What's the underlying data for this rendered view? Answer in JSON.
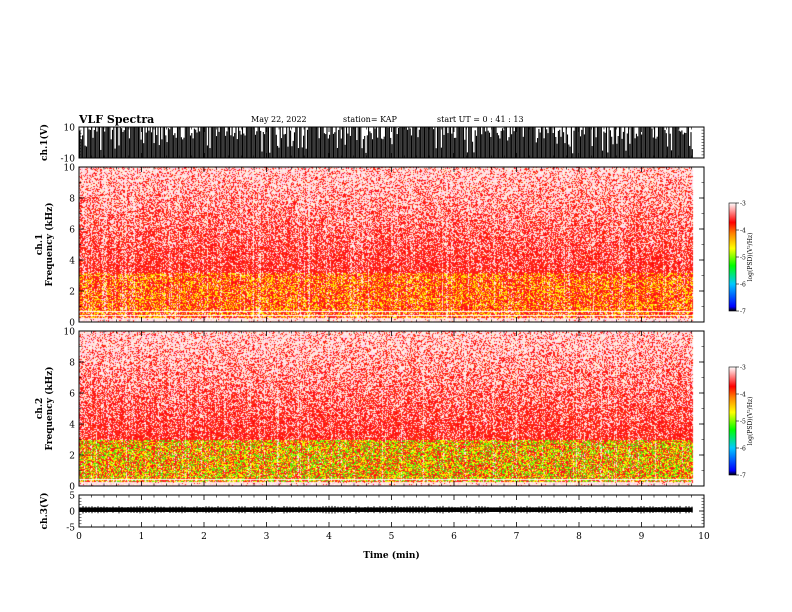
{
  "header": {
    "title": "VLF Spectra",
    "date": "May 22, 2022",
    "station": "station= KAP",
    "start": "start UT = 0 : 41 : 13"
  },
  "chart_data": [
    {
      "type": "line",
      "panel": "ch1-waveform",
      "ylabel": "ch.1(V)",
      "ylim": [
        -10,
        10
      ],
      "ytick_labels": [
        "-10",
        "10"
      ],
      "xlim": [
        0,
        10
      ],
      "data_span_min": [
        0,
        9.82
      ],
      "description_values": {
        "amplitude_range_V": [
          -10,
          10
        ],
        "baseline_V": -10
      }
    },
    {
      "type": "heatmap",
      "panel": "ch1-spectrogram",
      "ylabel": "ch.1\nFrequency (kHz)",
      "ylim": [
        0,
        10
      ],
      "ytick_labels": [
        "0",
        "2",
        "4",
        "6",
        "8",
        "10"
      ],
      "xlim": [
        0,
        10
      ],
      "data_span_min": [
        0,
        9.82
      ],
      "intense_band_kHz": [
        0.8,
        3.2
      ],
      "low_freq_cutoff_kHz": 0.3,
      "colorbar": {
        "label": "log(PSD)(V²/Hz)",
        "range": [
          -7,
          -3
        ],
        "tick_labels": [
          "-7",
          "-6",
          "-5",
          "-4",
          "-3"
        ],
        "colors": [
          "#000000",
          "#0000ff",
          "#00ffff",
          "#00ff00",
          "#ffff00",
          "#ff8000",
          "#ff0000",
          "#ffffff"
        ]
      }
    },
    {
      "type": "heatmap",
      "panel": "ch2-spectrogram",
      "ylabel": "ch.2\nFrequency (kHz)",
      "ylim": [
        0,
        10
      ],
      "ytick_labels": [
        "0",
        "2",
        "4",
        "6",
        "8",
        "10"
      ],
      "xlim": [
        0,
        10
      ],
      "data_span_min": [
        0,
        9.82
      ],
      "intense_band_kHz": [
        0.5,
        3.0
      ],
      "low_freq_cutoff_kHz": 0.3,
      "colorbar": {
        "label": "log(PSD)(V²/Hz)",
        "range": [
          -7,
          -3
        ],
        "tick_labels": [
          "-7",
          "-6",
          "-5",
          "-4",
          "-3"
        ],
        "colors": [
          "#000000",
          "#0000ff",
          "#00ffff",
          "#00ff00",
          "#ffff00",
          "#ff8000",
          "#ff0000",
          "#ffffff"
        ]
      }
    },
    {
      "type": "line",
      "panel": "ch3-waveform",
      "ylabel": "ch.3(V)",
      "ylim": [
        -5,
        5
      ],
      "ytick_labels": [
        "-5",
        "0",
        "5"
      ],
      "xlim": [
        0,
        10
      ],
      "data_span_min": [
        0,
        9.82
      ],
      "description_values": {
        "mean_V": 0.4,
        "band_halfwidth_V": 0.7
      }
    }
  ],
  "xaxis": {
    "label": "Time (min)",
    "ticks": [
      0,
      1,
      2,
      3,
      4,
      5,
      6,
      7,
      8,
      9,
      10
    ],
    "tick_labels": [
      "0",
      "1",
      "2",
      "3",
      "4",
      "5",
      "6",
      "7",
      "8",
      "9",
      "10"
    ]
  },
  "colors": {
    "spectrogram_background": "#ff2020",
    "waveform": "#000000"
  }
}
